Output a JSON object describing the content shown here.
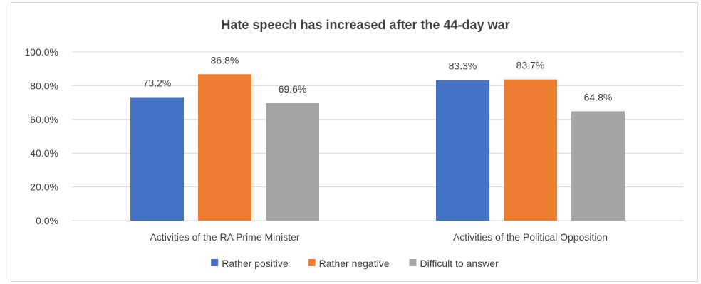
{
  "chart_data": {
    "type": "bar",
    "title": "Hate speech has increased after the 44-day war",
    "categories": [
      "Activities of the RA Prime Minister",
      "Activities of the Political Opposition"
    ],
    "series": [
      {
        "name": "Rather positive",
        "values": [
          73.2,
          83.3
        ],
        "labels": [
          "73.2%",
          "83.3%"
        ],
        "color": "#4472C4"
      },
      {
        "name": "Rather negative",
        "values": [
          86.8,
          83.7
        ],
        "labels": [
          "86.8%",
          "83.7%"
        ],
        "color": "#ED7D31"
      },
      {
        "name": "Difficult to answer",
        "values": [
          69.6,
          64.8
        ],
        "labels": [
          "69.6%",
          "64.8%"
        ],
        "color": "#A5A5A5"
      }
    ],
    "yticks": [
      "0.0%",
      "20.0%",
      "40.0%",
      "60.0%",
      "80.0%",
      "100.0%"
    ],
    "ylim": [
      0,
      100
    ],
    "grid": true,
    "legend_position": "bottom",
    "gridline_color": "#d9d9d9",
    "text_color": "#404040"
  }
}
